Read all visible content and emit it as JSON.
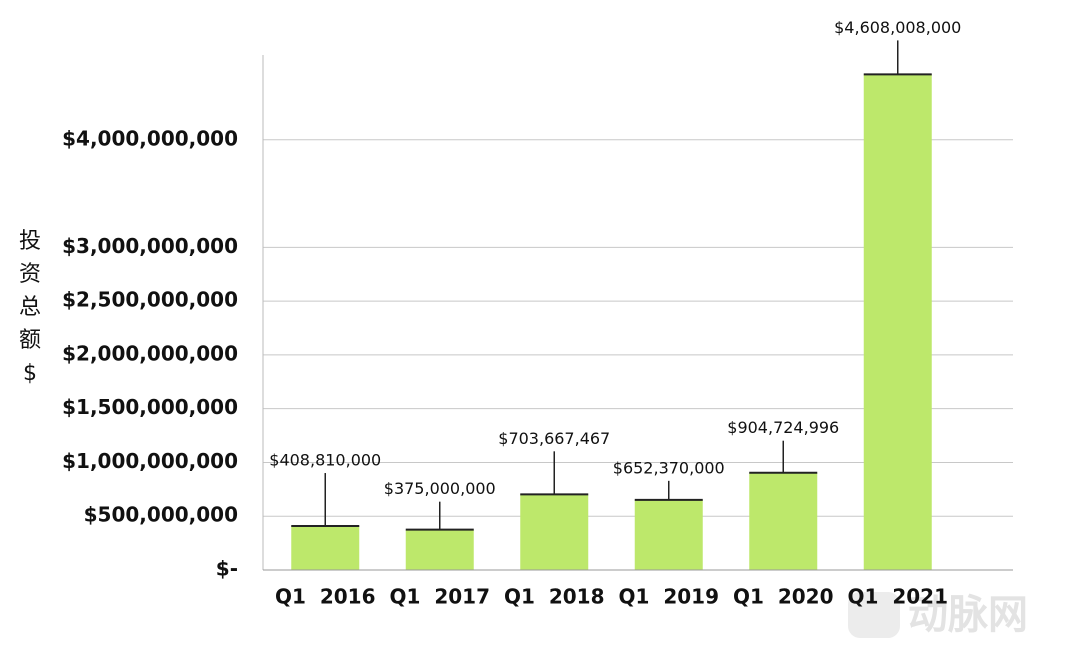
{
  "chart_data": {
    "type": "bar",
    "y_label": "投资总额$",
    "categories": [
      "Q1  2016",
      "Q1  2017",
      "Q1  2018",
      "Q1  2019",
      "Q1  2020",
      "Q1  2021"
    ],
    "values": [
      408810000,
      375000000,
      703667467,
      652370000,
      904724996,
      4608008000
    ],
    "value_labels": [
      "$408,810,000",
      "$375,000,000",
      "$703,667,467",
      "$652,370,000",
      "$904,724,996",
      "$4,608,008,000"
    ],
    "color": "#bde86b",
    "ylim": [
      0,
      4900000000
    ],
    "yticks": [
      {
        "value": 0,
        "label": "$-"
      },
      {
        "value": 500000000,
        "label": "$500,000,000"
      },
      {
        "value": 1000000000,
        "label": "$1,000,000,000"
      },
      {
        "value": 1500000000,
        "label": "$1,500,000,000"
      },
      {
        "value": 2000000000,
        "label": "$2,000,000,000"
      },
      {
        "value": 2500000000,
        "label": "$2,500,000,000"
      },
      {
        "value": 3000000000,
        "label": "$3,000,000,000"
      },
      {
        "value": 4000000000,
        "label": "$4,000,000,000"
      }
    ],
    "grid": true
  },
  "watermark": "动脉网"
}
